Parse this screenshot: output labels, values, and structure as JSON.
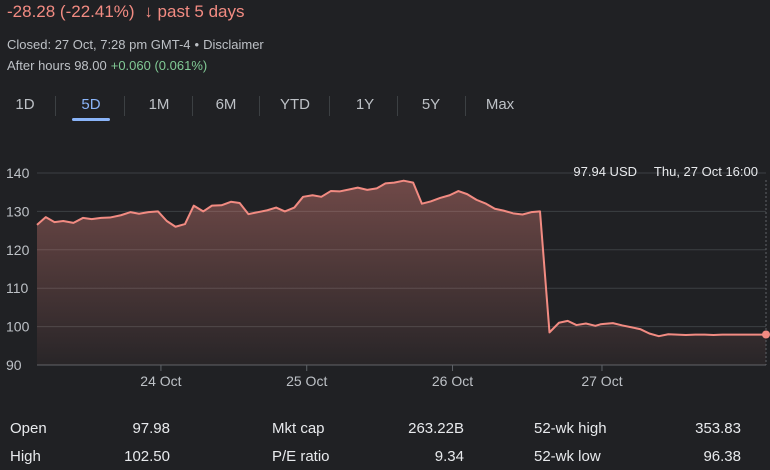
{
  "header": {
    "change": "-28.28 (-22.41%)",
    "arrow": "↓",
    "period": "past 5 days",
    "closed": "Closed: 27 Oct, 7:28 pm GMT-4",
    "bullet": "•",
    "disclaimer": "Disclaimer",
    "after_hours_label": "After hours 98.00",
    "after_hours_change": "+0.060 (0.061%)"
  },
  "tabs": [
    "1D",
    "5D",
    "1M",
    "6M",
    "YTD",
    "1Y",
    "5Y",
    "Max"
  ],
  "active_tab": "5D",
  "colors": {
    "background": "#202124",
    "line": "#f28b82",
    "negative": "#f28b82",
    "positive": "#81c995",
    "accent": "#8ab4f8",
    "grid": "#3c4043"
  },
  "chart_data": {
    "type": "area",
    "tooltip": {
      "price": "97.94 USD",
      "time": "Thu, 27 Oct 16:00"
    },
    "ylim": [
      90,
      140
    ],
    "yticks": [
      90,
      100,
      110,
      120,
      130,
      140
    ],
    "xlim": [
      0,
      100
    ],
    "xticks": [
      {
        "label": "24 Oct",
        "x": 17.0
      },
      {
        "label": "25 Oct",
        "x": 37.0
      },
      {
        "label": "26 Oct",
        "x": 57.0
      },
      {
        "label": "27 Oct",
        "x": 77.5
      }
    ],
    "grid": true,
    "series": [
      {
        "x": [
          0,
          1.2,
          2.4,
          3.6,
          5,
          6.3,
          7.5,
          8.8,
          10,
          11.5,
          12.8,
          14,
          15.3,
          16.6,
          17.8,
          19,
          20.3,
          21.5,
          22.8,
          24,
          25.3,
          26.6,
          27.8,
          29,
          30.3,
          31.6,
          32.8,
          34,
          35.3,
          36.5,
          37.8,
          39,
          40.3,
          41.5,
          42.8,
          44,
          45.3,
          46.6,
          47.8,
          49,
          50.3,
          51.6,
          52.8,
          54,
          55.3,
          56.6,
          57.8,
          59,
          60.3,
          61.6,
          62.8,
          64,
          65.3,
          66.6,
          67.8,
          69,
          70.3,
          71.6,
          72.8,
          74,
          75.3,
          76.6,
          77.3,
          77.8,
          79,
          80.3,
          81.6,
          82.8,
          84,
          85.3,
          86.6,
          87.8,
          89,
          90.3,
          91.6,
          92.8,
          94,
          95.3,
          96.6,
          97.8,
          99,
          100
        ],
        "y": [
          126.5,
          128.5,
          127.2,
          127.5,
          127.0,
          128.3,
          128.0,
          128.3,
          128.4,
          129.0,
          129.8,
          129.4,
          129.8,
          130.0,
          127.5,
          126.0,
          126.7,
          131.5,
          130.0,
          131.5,
          131.6,
          132.5,
          132.2,
          129.3,
          129.8,
          130.3,
          131.0,
          130.0,
          131.0,
          133.8,
          134.2,
          133.8,
          135.3,
          135.2,
          135.7,
          136.2,
          135.6,
          136.0,
          137.3,
          137.5,
          138.0,
          137.5,
          132.0,
          132.6,
          133.5,
          134.2,
          135.3,
          134.5,
          133.0,
          132.0,
          130.7,
          130.2,
          129.5,
          129.2,
          129.8,
          130.0,
          98.5,
          101.0,
          101.5,
          100.4,
          100.8,
          100.2,
          100.6,
          100.7,
          100.9,
          100.3,
          99.8,
          99.3,
          98.2,
          97.5,
          98.0,
          97.9,
          97.8,
          97.9,
          97.9,
          97.8,
          97.9,
          97.9,
          97.9,
          97.9,
          97.9,
          97.94
        ]
      }
    ]
  },
  "stats": {
    "open_label": "Open",
    "open_value": "97.98",
    "high_label": "High",
    "high_value": "102.50",
    "mktcap_label": "Mkt cap",
    "mktcap_value": "263.22B",
    "pe_label": "P/E ratio",
    "pe_value": "9.34",
    "wk52high_label": "52-wk high",
    "wk52high_value": "353.83",
    "wk52low_label": "52-wk low",
    "wk52low_value": "96.38"
  }
}
